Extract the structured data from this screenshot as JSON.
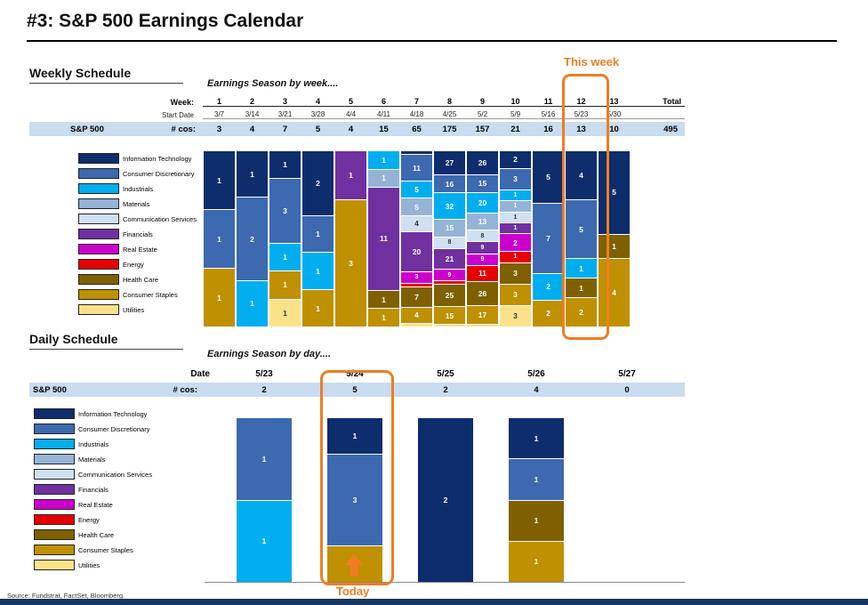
{
  "page": {
    "title": "#3: S&P 500 Earnings Calendar",
    "source": "Source: Fundstrat, FactSet, Bloomberg."
  },
  "colors": {
    "accent_orange": "#ee7d22",
    "band_blue": "#c9dcf0",
    "footer_navy": "#17365d"
  },
  "sections": {
    "weekly": {
      "heading": "Weekly Schedule",
      "subtitle": "Earnings Season by week....",
      "annotation": "This week",
      "row_labels": {
        "week": "Week:",
        "start_date": "Start Date",
        "index": "S&P 500",
        "cos": "# cos:",
        "total": "Total"
      }
    },
    "daily": {
      "heading": "Daily Schedule",
      "subtitle": "Earnings Season by day....",
      "annotation": "Today",
      "row_labels": {
        "date": "Date",
        "index": "S&P 500",
        "cos": "# cos:"
      }
    }
  },
  "chart_data": [
    {
      "id": "weekly",
      "type": "stacked-bar-100",
      "title": "Earnings Season by week....",
      "categories": [
        "1",
        "2",
        "3",
        "4",
        "5",
        "6",
        "7",
        "8",
        "9",
        "10",
        "11",
        "12",
        "13"
      ],
      "start_dates": [
        "3/7",
        "3/14",
        "3/21",
        "3/28",
        "4/4",
        "4/11",
        "4/18",
        "4/25",
        "5/2",
        "5/9",
        "5/16",
        "5/23",
        "5/30"
      ],
      "totals": [
        3,
        4,
        7,
        5,
        4,
        15,
        65,
        175,
        157,
        21,
        16,
        13,
        10
      ],
      "grand_total": 495,
      "highlight_category": "12",
      "legend_position": "left",
      "series": [
        {
          "name": "Information Technology",
          "color": "#0d2d6c",
          "text": "#ffffff",
          "values": [
            1,
            1,
            1,
            2,
            0,
            0,
            2,
            27,
            26,
            2,
            5,
            4,
            5
          ]
        },
        {
          "name": "Consumer Discretionary",
          "color": "#3c69af",
          "text": "#ffffff",
          "values": [
            1,
            2,
            3,
            1,
            0,
            0,
            11,
            16,
            15,
            3,
            7,
            5,
            0
          ]
        },
        {
          "name": "Industrials",
          "color": "#00aeef",
          "text": "#ffffff",
          "values": [
            0,
            1,
            1,
            1,
            0,
            1,
            5,
            32,
            20,
            1,
            2,
            1,
            0
          ]
        },
        {
          "name": "Materials",
          "color": "#95b3d7",
          "text": "#ffffff",
          "values": [
            0,
            0,
            0,
            0,
            0,
            1,
            5,
            15,
            13,
            1,
            0,
            0,
            0
          ]
        },
        {
          "name": "Communication Services",
          "color": "#cfe0f3",
          "text": "#333333",
          "values": [
            0,
            0,
            0,
            0,
            0,
            0,
            4,
            8,
            8,
            1,
            0,
            0,
            0
          ]
        },
        {
          "name": "Financials",
          "color": "#7030a0",
          "text": "#ffffff",
          "values": [
            0,
            0,
            0,
            0,
            1,
            11,
            20,
            21,
            9,
            1,
            0,
            0,
            0
          ]
        },
        {
          "name": "Real Estate",
          "color": "#cc00cc",
          "text": "#ffffff",
          "values": [
            0,
            0,
            0,
            0,
            0,
            0,
            3,
            9,
            9,
            2,
            0,
            0,
            0
          ]
        },
        {
          "name": "Energy",
          "color": "#e60000",
          "text": "#ffffff",
          "values": [
            0,
            0,
            0,
            0,
            0,
            0,
            2,
            4,
            11,
            1,
            0,
            0,
            0
          ]
        },
        {
          "name": "Health Care",
          "color": "#7f6000",
          "text": "#ffffff",
          "values": [
            0,
            0,
            0,
            0,
            0,
            1,
            7,
            25,
            26,
            3,
            0,
            1,
            1
          ]
        },
        {
          "name": "Consumer Staples",
          "color": "#bf9000",
          "text": "#ffffff",
          "values": [
            1,
            0,
            1,
            1,
            3,
            1,
            4,
            15,
            17,
            3,
            2,
            2,
            4
          ]
        },
        {
          "name": "Utilities",
          "color": "#fbe28a",
          "text": "#333333",
          "values": [
            0,
            0,
            1,
            0,
            0,
            0,
            2,
            3,
            3,
            3,
            0,
            0,
            0
          ]
        }
      ]
    },
    {
      "id": "daily",
      "type": "stacked-bar-100",
      "title": "Earnings Season by day....",
      "categories": [
        "5/23",
        "5/24",
        "5/25",
        "5/26",
        "5/27"
      ],
      "totals": [
        2,
        5,
        2,
        4,
        0
      ],
      "highlight_category": "5/24",
      "legend_position": "left",
      "series": [
        {
          "name": "Information Technology",
          "color": "#0d2d6c",
          "text": "#ffffff",
          "values": [
            0,
            1,
            2,
            1,
            0
          ]
        },
        {
          "name": "Consumer Discretionary",
          "color": "#3c69af",
          "text": "#ffffff",
          "values": [
            1,
            3,
            0,
            1,
            0
          ]
        },
        {
          "name": "Industrials",
          "color": "#00aeef",
          "text": "#ffffff",
          "values": [
            1,
            0,
            0,
            0,
            0
          ]
        },
        {
          "name": "Materials",
          "color": "#95b3d7",
          "text": "#333333",
          "values": [
            0,
            0,
            0,
            0,
            0
          ]
        },
        {
          "name": "Communication Services",
          "color": "#cfe0f3",
          "text": "#333333",
          "values": [
            0,
            0,
            0,
            0,
            0
          ]
        },
        {
          "name": "Financials",
          "color": "#7030a0",
          "text": "#ffffff",
          "values": [
            0,
            0,
            0,
            0,
            0
          ]
        },
        {
          "name": "Real Estate",
          "color": "#cc00cc",
          "text": "#ffffff",
          "values": [
            0,
            0,
            0,
            0,
            0
          ]
        },
        {
          "name": "Energy",
          "color": "#e60000",
          "text": "#ffffff",
          "values": [
            0,
            0,
            0,
            0,
            0
          ]
        },
        {
          "name": "Health Care",
          "color": "#7f6000",
          "text": "#ffffff",
          "values": [
            0,
            0,
            0,
            1,
            0
          ]
        },
        {
          "name": "Consumer Staples",
          "color": "#bf9000",
          "text": "#ffffff",
          "values": [
            0,
            1,
            0,
            1,
            0
          ]
        },
        {
          "name": "Utilities",
          "color": "#fbe28a",
          "text": "#333333",
          "values": [
            0,
            0,
            0,
            0,
            0
          ]
        }
      ]
    }
  ]
}
